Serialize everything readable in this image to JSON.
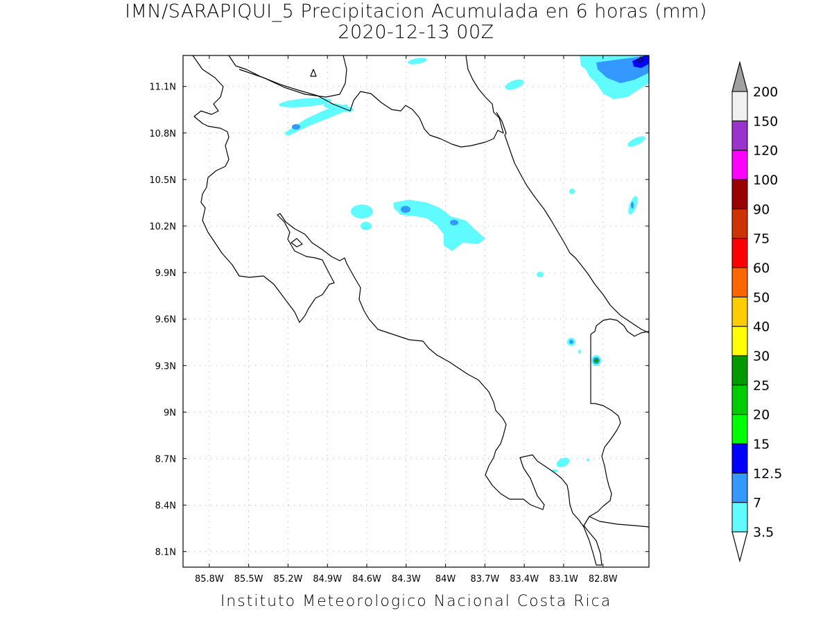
{
  "title": {
    "line1": "IMN/SARAPIQUI_5 Precipitacion Acumulada en 6 horas (mm)",
    "line2": "2020-12-13 00Z"
  },
  "footer": "Instituto Meteorologico Nacional Costa Rica",
  "map": {
    "lon_range": [
      -86.0,
      -82.45
    ],
    "lat_range": [
      8.0,
      11.3
    ],
    "lon_ticks": [
      {
        "value": -85.8,
        "label": "85.8W"
      },
      {
        "value": -85.5,
        "label": "85.5W"
      },
      {
        "value": -85.2,
        "label": "85.2W"
      },
      {
        "value": -84.9,
        "label": "84.9W"
      },
      {
        "value": -84.6,
        "label": "84.6W"
      },
      {
        "value": -84.3,
        "label": "84.3W"
      },
      {
        "value": -84.0,
        "label": "84W"
      },
      {
        "value": -83.7,
        "label": "83.7W"
      },
      {
        "value": -83.4,
        "label": "83.4W"
      },
      {
        "value": -83.1,
        "label": "83.1W"
      },
      {
        "value": -82.8,
        "label": "82.8W"
      }
    ],
    "lat_ticks": [
      {
        "value": 8.1,
        "label": "8.1N"
      },
      {
        "value": 8.4,
        "label": "8.4N"
      },
      {
        "value": 8.7,
        "label": "8.7N"
      },
      {
        "value": 9.0,
        "label": "9N"
      },
      {
        "value": 9.3,
        "label": "9.3N"
      },
      {
        "value": 9.6,
        "label": "9.6N"
      },
      {
        "value": 9.9,
        "label": "9.9N"
      },
      {
        "value": 10.2,
        "label": "10.2N"
      },
      {
        "value": 10.5,
        "label": "10.5N"
      },
      {
        "value": 10.8,
        "label": "10.8N"
      },
      {
        "value": 11.1,
        "label": "11.1N"
      }
    ],
    "grid": true
  },
  "colorbar": {
    "under_color": "#ffffff",
    "over_color": "#a0a0a0",
    "levels": [
      {
        "label": "3.5",
        "color": "#5ffbff"
      },
      {
        "label": "7",
        "color": "#3399ff"
      },
      {
        "label": "12.5",
        "color": "#0000ff"
      },
      {
        "label": "15",
        "color": "#00ff00"
      },
      {
        "label": "20",
        "color": "#00cc00"
      },
      {
        "label": "25",
        "color": "#009900"
      },
      {
        "label": "30",
        "color": "#ffff00"
      },
      {
        "label": "40",
        "color": "#ffcc00"
      },
      {
        "label": "50",
        "color": "#ff6600"
      },
      {
        "label": "60",
        "color": "#ff0000"
      },
      {
        "label": "75",
        "color": "#cc3300"
      },
      {
        "label": "90",
        "color": "#990000"
      },
      {
        "label": "100",
        "color": "#ff00ff"
      },
      {
        "label": "120",
        "color": "#9933cc"
      },
      {
        "label": "150",
        "color": "#f0f0f0"
      },
      {
        "label": "200",
        "color": ""
      }
    ]
  },
  "colors": {
    "light_cyan": "#5ffbff",
    "mid_blue": "#3399ff",
    "dark_blue": "#0000ff",
    "green": "#00aa00",
    "coast": "#000000",
    "grid": "#b0b0b0"
  }
}
